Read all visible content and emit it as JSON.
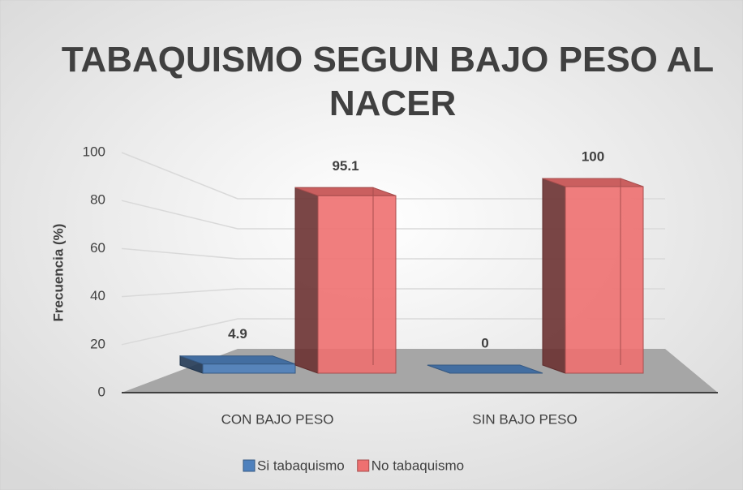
{
  "chart_data": {
    "type": "bar3d",
    "title": "TABAQUISMO SEGUN BAJO PESO AL NACER",
    "ylabel": "Frecuencia (%)",
    "categories": [
      "CON BAJO PESO",
      "SIN BAJO PESO"
    ],
    "series": [
      {
        "name": "Si tabaquismo",
        "color": "#4f81bd",
        "values": [
          4.9,
          0
        ]
      },
      {
        "name": "No tabaquismo",
        "color": "#ee7070",
        "values": [
          95.1,
          100
        ]
      }
    ],
    "ylim": [
      0,
      100
    ],
    "yticks": [
      0,
      20,
      40,
      60,
      80,
      100
    ],
    "grid": true,
    "legend": "bottom"
  }
}
